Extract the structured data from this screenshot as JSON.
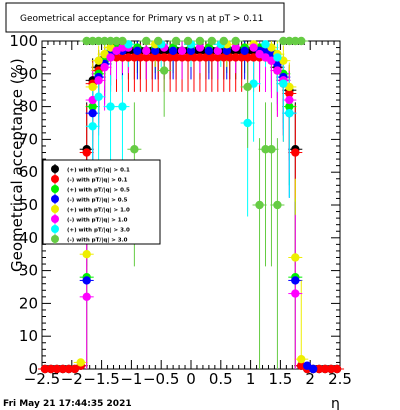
{
  "title": "Geometrical acceptance for Primary vs   η at pT > 0.11",
  "timestamp": "Fri May 21 17:44:35 2021",
  "chart_data": {
    "type": "scatter",
    "xlabel": "η",
    "ylabel": "Geometrical acceptance (%)",
    "xlim": [
      -2.5,
      2.5
    ],
    "ylim": [
      0,
      100
    ],
    "x_ticks": [
      "−2.5",
      "−2",
      "−1.5",
      "−1",
      "−0.5",
      "0",
      "0.5",
      "1",
      "1.5",
      "2",
      "2.5"
    ],
    "y_ticks": [
      "0",
      "10",
      "20",
      "30",
      "40",
      "50",
      "60",
      "70",
      "80",
      "90",
      "100"
    ],
    "grid": false,
    "legend_position": "left-center",
    "series": [
      {
        "name": "(+) with pT/|q| > 0.1",
        "color": "#000000",
        "values": [
          {
            "x": -2.45,
            "y": 0
          },
          {
            "x": -2.35,
            "y": 0
          },
          {
            "x": -2.25,
            "y": 0
          },
          {
            "x": -2.15,
            "y": 0
          },
          {
            "x": -2.05,
            "y": 0
          },
          {
            "x": -1.95,
            "y": 0
          },
          {
            "x": -1.85,
            "y": 1
          },
          {
            "x": -1.75,
            "y": 67
          },
          {
            "x": -1.65,
            "y": 88
          },
          {
            "x": -1.55,
            "y": 92
          },
          {
            "x": -1.45,
            "y": 95
          },
          {
            "x": -1.35,
            "y": 96
          },
          {
            "x": -1.25,
            "y": 97
          },
          {
            "x": -1.15,
            "y": 97
          },
          {
            "x": -1.05,
            "y": 97
          },
          {
            "x": -0.95,
            "y": 97
          },
          {
            "x": -0.85,
            "y": 97
          },
          {
            "x": -0.75,
            "y": 97
          },
          {
            "x": -0.65,
            "y": 97
          },
          {
            "x": -0.55,
            "y": 97
          },
          {
            "x": -0.45,
            "y": 97
          },
          {
            "x": -0.35,
            "y": 97
          },
          {
            "x": -0.25,
            "y": 97
          },
          {
            "x": -0.15,
            "y": 97
          },
          {
            "x": -0.05,
            "y": 97
          },
          {
            "x": 0.05,
            "y": 97
          },
          {
            "x": 0.15,
            "y": 97
          },
          {
            "x": 0.25,
            "y": 97
          },
          {
            "x": 0.35,
            "y": 97
          },
          {
            "x": 0.45,
            "y": 97
          },
          {
            "x": 0.55,
            "y": 97
          },
          {
            "x": 0.65,
            "y": 97
          },
          {
            "x": 0.75,
            "y": 97
          },
          {
            "x": 0.85,
            "y": 97
          },
          {
            "x": 0.95,
            "y": 97
          },
          {
            "x": 1.05,
            "y": 97
          },
          {
            "x": 1.15,
            "y": 97
          },
          {
            "x": 1.25,
            "y": 96
          },
          {
            "x": 1.35,
            "y": 95
          },
          {
            "x": 1.45,
            "y": 92
          },
          {
            "x": 1.55,
            "y": 88
          },
          {
            "x": 1.65,
            "y": 85
          },
          {
            "x": 1.75,
            "y": 67
          },
          {
            "x": 1.85,
            "y": 1
          },
          {
            "x": 1.95,
            "y": 0
          },
          {
            "x": 2.05,
            "y": 0
          },
          {
            "x": 2.15,
            "y": 0
          },
          {
            "x": 2.25,
            "y": 0
          },
          {
            "x": 2.35,
            "y": 0
          },
          {
            "x": 2.45,
            "y": 0
          }
        ]
      },
      {
        "name": "(-) with pT/|q| > 0.1",
        "color": "#ff0000",
        "values": [
          {
            "x": -2.45,
            "y": 0
          },
          {
            "x": -2.35,
            "y": 0
          },
          {
            "x": -2.25,
            "y": 0
          },
          {
            "x": -2.15,
            "y": 0
          },
          {
            "x": -2.05,
            "y": 0
          },
          {
            "x": -1.95,
            "y": 0
          },
          {
            "x": -1.85,
            "y": 1
          },
          {
            "x": -1.75,
            "y": 66
          },
          {
            "x": -1.65,
            "y": 87
          },
          {
            "x": -1.55,
            "y": 91
          },
          {
            "x": -1.45,
            "y": 94
          },
          {
            "x": -1.35,
            "y": 95
          },
          {
            "x": -1.25,
            "y": 95
          },
          {
            "x": -1.15,
            "y": 95
          },
          {
            "x": -1.05,
            "y": 95
          },
          {
            "x": -0.95,
            "y": 95
          },
          {
            "x": -0.85,
            "y": 95
          },
          {
            "x": -0.75,
            "y": 95
          },
          {
            "x": -0.65,
            "y": 95
          },
          {
            "x": -0.55,
            "y": 95
          },
          {
            "x": -0.45,
            "y": 95
          },
          {
            "x": -0.35,
            "y": 95
          },
          {
            "x": -0.25,
            "y": 95
          },
          {
            "x": -0.15,
            "y": 95
          },
          {
            "x": -0.05,
            "y": 95
          },
          {
            "x": 0.05,
            "y": 95
          },
          {
            "x": 0.15,
            "y": 95
          },
          {
            "x": 0.25,
            "y": 95
          },
          {
            "x": 0.35,
            "y": 95
          },
          {
            "x": 0.45,
            "y": 95
          },
          {
            "x": 0.55,
            "y": 95
          },
          {
            "x": 0.65,
            "y": 95
          },
          {
            "x": 0.75,
            "y": 95
          },
          {
            "x": 0.85,
            "y": 95
          },
          {
            "x": 0.95,
            "y": 95
          },
          {
            "x": 1.05,
            "y": 95
          },
          {
            "x": 1.15,
            "y": 95
          },
          {
            "x": 1.25,
            "y": 95
          },
          {
            "x": 1.35,
            "y": 94
          },
          {
            "x": 1.45,
            "y": 91
          },
          {
            "x": 1.55,
            "y": 87
          },
          {
            "x": 1.65,
            "y": 84
          },
          {
            "x": 1.75,
            "y": 66
          },
          {
            "x": 1.85,
            "y": 1
          },
          {
            "x": 1.95,
            "y": 0
          },
          {
            "x": 2.05,
            "y": 0
          },
          {
            "x": 2.15,
            "y": 0
          },
          {
            "x": 2.25,
            "y": 0
          },
          {
            "x": 2.35,
            "y": 0
          },
          {
            "x": 2.45,
            "y": 0
          }
        ]
      },
      {
        "name": "(+) with pT/|q| > 0.5",
        "color": "#00ee00",
        "values": [
          {
            "x": -1.75,
            "y": 28
          },
          {
            "x": -1.65,
            "y": 80
          },
          {
            "x": -1.55,
            "y": 90
          },
          {
            "x": -1.45,
            "y": 94
          },
          {
            "x": -1.35,
            "y": 97
          },
          {
            "x": -1.25,
            "y": 98
          },
          {
            "x": -1.15,
            "y": 98
          },
          {
            "x": -0.9,
            "y": 98
          },
          {
            "x": -0.6,
            "y": 98
          },
          {
            "x": -0.3,
            "y": 98
          },
          {
            "x": 0.0,
            "y": 98
          },
          {
            "x": 0.3,
            "y": 98
          },
          {
            "x": 0.6,
            "y": 98
          },
          {
            "x": 0.9,
            "y": 98
          },
          {
            "x": 1.15,
            "y": 98
          },
          {
            "x": 1.25,
            "y": 98
          },
          {
            "x": 1.35,
            "y": 97
          },
          {
            "x": 1.45,
            "y": 94
          },
          {
            "x": 1.55,
            "y": 90
          },
          {
            "x": 1.65,
            "y": 80
          },
          {
            "x": 1.75,
            "y": 28
          }
        ]
      },
      {
        "name": "(-) with pT/|q| > 0.5",
        "color": "#0000ff",
        "values": [
          {
            "x": -1.75,
            "y": 27
          },
          {
            "x": -1.65,
            "y": 78
          },
          {
            "x": -1.55,
            "y": 89
          },
          {
            "x": -1.45,
            "y": 93
          },
          {
            "x": -1.35,
            "y": 96
          },
          {
            "x": -1.25,
            "y": 97
          },
          {
            "x": -1.15,
            "y": 97
          },
          {
            "x": -0.9,
            "y": 97
          },
          {
            "x": -0.6,
            "y": 97
          },
          {
            "x": -0.3,
            "y": 97
          },
          {
            "x": 0.0,
            "y": 97
          },
          {
            "x": 0.3,
            "y": 97
          },
          {
            "x": 0.6,
            "y": 97
          },
          {
            "x": 0.9,
            "y": 97
          },
          {
            "x": 1.15,
            "y": 97
          },
          {
            "x": 1.25,
            "y": 97
          },
          {
            "x": 1.35,
            "y": 96
          },
          {
            "x": 1.45,
            "y": 93
          },
          {
            "x": 1.55,
            "y": 89
          },
          {
            "x": 1.65,
            "y": 78
          },
          {
            "x": 1.75,
            "y": 27
          },
          {
            "x": 1.95,
            "y": 1
          },
          {
            "x": 2.05,
            "y": 0
          }
        ]
      },
      {
        "name": "(+) with pT/|q| > 1.0",
        "color": "#eeee00",
        "values": [
          {
            "x": -1.85,
            "y": 2
          },
          {
            "x": -1.75,
            "y": 35
          },
          {
            "x": -1.65,
            "y": 86
          },
          {
            "x": -1.55,
            "y": 94
          },
          {
            "x": -1.45,
            "y": 96
          },
          {
            "x": -1.35,
            "y": 98
          },
          {
            "x": -1.05,
            "y": 99
          },
          {
            "x": -0.6,
            "y": 99
          },
          {
            "x": 0.0,
            "y": 99
          },
          {
            "x": 0.6,
            "y": 99
          },
          {
            "x": 1.05,
            "y": 99
          },
          {
            "x": 1.35,
            "y": 98
          },
          {
            "x": 1.45,
            "y": 96
          },
          {
            "x": 1.55,
            "y": 94
          },
          {
            "x": 1.65,
            "y": 86
          },
          {
            "x": 1.75,
            "y": 34
          },
          {
            "x": 1.85,
            "y": 3
          }
        ]
      },
      {
        "name": "(-) with pT/|q| > 1.0",
        "color": "#ff00ff",
        "values": [
          {
            "x": -1.75,
            "y": 22
          },
          {
            "x": -1.65,
            "y": 82
          },
          {
            "x": -1.55,
            "y": 88
          },
          {
            "x": -1.45,
            "y": 92
          },
          {
            "x": -1.35,
            "y": 95
          },
          {
            "x": -1.25,
            "y": 97
          },
          {
            "x": -1.15,
            "y": 98
          },
          {
            "x": -1.05,
            "y": 98
          },
          {
            "x": -0.75,
            "y": 97
          },
          {
            "x": -0.45,
            "y": 98
          },
          {
            "x": -0.15,
            "y": 97
          },
          {
            "x": 0.15,
            "y": 98
          },
          {
            "x": 0.45,
            "y": 97
          },
          {
            "x": 0.75,
            "y": 98
          },
          {
            "x": 1.05,
            "y": 98
          },
          {
            "x": 1.15,
            "y": 96
          },
          {
            "x": 1.25,
            "y": 95
          },
          {
            "x": 1.35,
            "y": 94
          },
          {
            "x": 1.45,
            "y": 91
          },
          {
            "x": 1.55,
            "y": 88
          },
          {
            "x": 1.65,
            "y": 82
          },
          {
            "x": 1.75,
            "y": 23
          }
        ]
      },
      {
        "name": "(+) with pT/|q| > 3.0",
        "color": "#00ffff",
        "values": [
          {
            "x": -1.65,
            "y": 74
          },
          {
            "x": -1.55,
            "y": 83
          },
          {
            "x": -1.35,
            "y": 80
          },
          {
            "x": -1.15,
            "y": 80
          },
          {
            "x": -1.05,
            "y": 99
          },
          {
            "x": -0.5,
            "y": 99
          },
          {
            "x": 0.0,
            "y": 99
          },
          {
            "x": 0.5,
            "y": 99
          },
          {
            "x": 0.95,
            "y": 75
          },
          {
            "x": 1.05,
            "y": 87
          },
          {
            "x": 1.25,
            "y": 99
          },
          {
            "x": 1.45,
            "y": 95
          },
          {
            "x": 1.55,
            "y": 87
          },
          {
            "x": 1.65,
            "y": 78
          }
        ]
      },
      {
        "name": "(-) with pT/|q| > 3.0",
        "color": "#66cc44",
        "values": [
          {
            "x": -1.75,
            "y": 100
          },
          {
            "x": -1.65,
            "y": 100
          },
          {
            "x": -1.55,
            "y": 100
          },
          {
            "x": -1.45,
            "y": 100
          },
          {
            "x": -1.35,
            "y": 100
          },
          {
            "x": -1.25,
            "y": 100
          },
          {
            "x": -1.15,
            "y": 100
          },
          {
            "x": -0.95,
            "y": 67
          },
          {
            "x": -0.75,
            "y": 100
          },
          {
            "x": -0.55,
            "y": 100
          },
          {
            "x": -0.45,
            "y": 91
          },
          {
            "x": -0.25,
            "y": 100
          },
          {
            "x": -0.05,
            "y": 100
          },
          {
            "x": 0.15,
            "y": 100
          },
          {
            "x": 0.35,
            "y": 100
          },
          {
            "x": 0.55,
            "y": 100
          },
          {
            "x": 0.75,
            "y": 100
          },
          {
            "x": 0.95,
            "y": 86
          },
          {
            "x": 1.15,
            "y": 50
          },
          {
            "x": 1.25,
            "y": 67
          },
          {
            "x": 1.35,
            "y": 67
          },
          {
            "x": 1.45,
            "y": 50
          },
          {
            "x": 1.55,
            "y": 100
          },
          {
            "x": 1.65,
            "y": 100
          },
          {
            "x": 1.75,
            "y": 100
          },
          {
            "x": 1.85,
            "y": 100
          }
        ]
      }
    ]
  }
}
